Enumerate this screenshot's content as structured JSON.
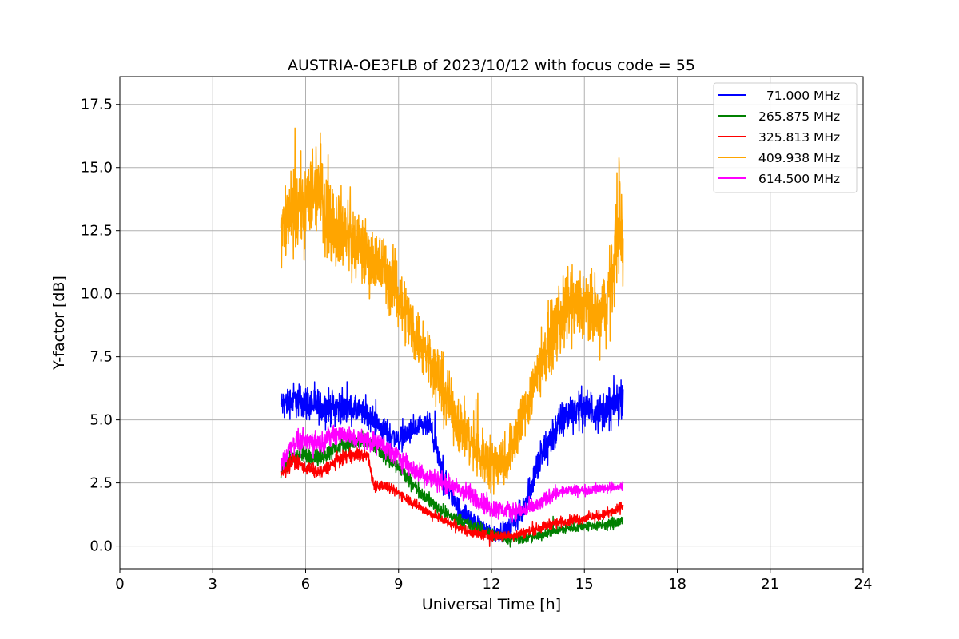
{
  "chart_data": {
    "type": "line",
    "title": "AUSTRIA-OE3FLB of 2023/10/12 with focus code = 55",
    "xlabel": "Universal Time [h]",
    "ylabel": "Y-factor [dB]",
    "xlim": [
      0,
      24
    ],
    "ylim": [
      -0.9,
      18.6
    ],
    "xticks": [
      0,
      3,
      6,
      9,
      12,
      15,
      18,
      21,
      24
    ],
    "xtick_labels": [
      "0",
      "3",
      "6",
      "9",
      "12",
      "15",
      "18",
      "21",
      "24"
    ],
    "yticks": [
      0.0,
      2.5,
      5.0,
      7.5,
      10.0,
      12.5,
      15.0,
      17.5
    ],
    "ytick_labels": [
      "0.0",
      "2.5",
      "5.0",
      "7.5",
      "10.0",
      "12.5",
      "15.0",
      "17.5"
    ],
    "grid": true,
    "legend_position": "top-right",
    "series": [
      {
        "name": "71.000 MHz",
        "legend_label": "  71.000 MHz",
        "color": "#0000ff",
        "x": [
          5.2,
          5.6,
          6.0,
          6.5,
          7.0,
          7.5,
          8.0,
          8.5,
          9.0,
          9.5,
          10.0,
          10.5,
          11.0,
          11.5,
          12.0,
          12.5,
          13.0,
          13.5,
          14.0,
          14.5,
          15.0,
          15.5,
          16.0,
          16.25
        ],
        "y": [
          5.6,
          5.8,
          5.7,
          5.5,
          5.5,
          5.4,
          5.2,
          4.6,
          4.2,
          4.6,
          4.8,
          2.5,
          1.4,
          0.9,
          0.5,
          0.6,
          1.4,
          3.2,
          4.5,
          5.3,
          5.5,
          5.3,
          5.6,
          6.0
        ],
        "noise": [
          0.8,
          1.0,
          1.0,
          1.0,
          1.0,
          0.8,
          0.8,
          0.8,
          0.7,
          0.7,
          0.7,
          0.8,
          0.6,
          0.5,
          0.5,
          0.5,
          0.8,
          1.1,
          1.2,
          1.1,
          1.1,
          1.1,
          1.3,
          1.2
        ]
      },
      {
        "name": "265.875 MHz",
        "legend_label": "265.875 MHz",
        "color": "#008000",
        "x": [
          5.2,
          5.6,
          6.0,
          6.5,
          7.0,
          7.5,
          8.0,
          8.5,
          9.0,
          9.5,
          10.0,
          10.5,
          11.0,
          11.5,
          12.0,
          12.5,
          13.0,
          13.5,
          14.0,
          14.5,
          15.0,
          15.5,
          16.0,
          16.25
        ],
        "y": [
          3.0,
          3.5,
          3.6,
          3.5,
          3.9,
          4.1,
          4.1,
          3.7,
          3.1,
          2.4,
          1.8,
          1.3,
          1.0,
          0.7,
          0.5,
          0.3,
          0.3,
          0.4,
          0.6,
          0.7,
          0.8,
          0.8,
          0.9,
          1.0
        ],
        "noise": [
          0.5,
          0.6,
          0.5,
          0.5,
          0.5,
          0.5,
          0.5,
          0.5,
          0.5,
          0.4,
          0.4,
          0.4,
          0.4,
          0.4,
          0.4,
          0.3,
          0.3,
          0.3,
          0.3,
          0.3,
          0.3,
          0.3,
          0.4,
          0.3
        ]
      },
      {
        "name": "325.813 MHz",
        "legend_label": "325.813 MHz",
        "color": "#ff0000",
        "x": [
          5.2,
          5.6,
          6.0,
          6.5,
          7.0,
          7.5,
          8.0,
          8.2,
          8.5,
          9.0,
          9.5,
          10.0,
          10.5,
          11.0,
          11.5,
          12.0,
          12.5,
          13.0,
          13.5,
          14.0,
          14.5,
          15.0,
          15.5,
          16.0,
          16.25
        ],
        "y": [
          2.8,
          3.4,
          3.1,
          2.9,
          3.4,
          3.6,
          3.6,
          2.4,
          2.4,
          2.1,
          1.7,
          1.3,
          1.0,
          0.7,
          0.5,
          0.4,
          0.4,
          0.5,
          0.7,
          0.9,
          1.0,
          1.1,
          1.2,
          1.4,
          1.6
        ],
        "noise": [
          0.4,
          0.4,
          0.4,
          0.4,
          0.4,
          0.4,
          0.4,
          0.4,
          0.3,
          0.3,
          0.3,
          0.3,
          0.3,
          0.3,
          0.3,
          0.3,
          0.3,
          0.3,
          0.3,
          0.3,
          0.3,
          0.3,
          0.3,
          0.3,
          0.3
        ]
      },
      {
        "name": "409.938 MHz",
        "legend_label": "409.938 MHz",
        "color": "#ffa500",
        "x": [
          5.2,
          5.5,
          6.0,
          6.4,
          6.8,
          7.2,
          7.6,
          8.0,
          8.5,
          9.0,
          9.5,
          10.0,
          10.5,
          11.0,
          11.5,
          12.0,
          12.5,
          13.0,
          13.5,
          14.0,
          14.5,
          15.0,
          15.5,
          15.9,
          16.1,
          16.25
        ],
        "y": [
          12.5,
          13.0,
          13.5,
          14.5,
          13.0,
          12.5,
          12.0,
          11.5,
          11.0,
          10.0,
          8.5,
          7.5,
          6.0,
          4.8,
          3.8,
          3.2,
          3.5,
          5.0,
          7.0,
          8.5,
          9.5,
          9.5,
          9.0,
          10.5,
          13.5,
          11.5
        ],
        "noise": [
          2.2,
          2.4,
          2.6,
          3.2,
          2.6,
          2.4,
          2.2,
          2.0,
          2.0,
          2.0,
          1.8,
          1.8,
          1.8,
          1.8,
          1.6,
          1.6,
          1.6,
          1.6,
          1.8,
          2.0,
          2.2,
          2.2,
          2.2,
          2.4,
          3.8,
          2.6
        ]
      },
      {
        "name": "614.500 MHz",
        "legend_label": "614.500 MHz",
        "color": "#ff00ff",
        "x": [
          5.2,
          5.6,
          6.0,
          6.5,
          7.0,
          7.5,
          8.0,
          8.5,
          9.0,
          9.5,
          10.0,
          10.5,
          11.0,
          11.5,
          12.0,
          12.5,
          13.0,
          13.5,
          14.0,
          14.5,
          15.0,
          15.5,
          16.0,
          16.25
        ],
        "y": [
          3.2,
          4.1,
          4.2,
          4.1,
          4.5,
          4.3,
          4.2,
          4.0,
          3.5,
          3.0,
          2.7,
          2.5,
          2.2,
          1.9,
          1.5,
          1.4,
          1.4,
          1.6,
          2.1,
          2.2,
          2.2,
          2.3,
          2.3,
          2.4
        ],
        "noise": [
          0.6,
          0.6,
          0.6,
          0.6,
          0.6,
          0.6,
          0.6,
          0.6,
          0.6,
          0.6,
          0.6,
          0.6,
          0.6,
          0.6,
          0.6,
          0.5,
          0.5,
          0.5,
          0.4,
          0.3,
          0.3,
          0.3,
          0.3,
          0.3
        ]
      }
    ]
  }
}
